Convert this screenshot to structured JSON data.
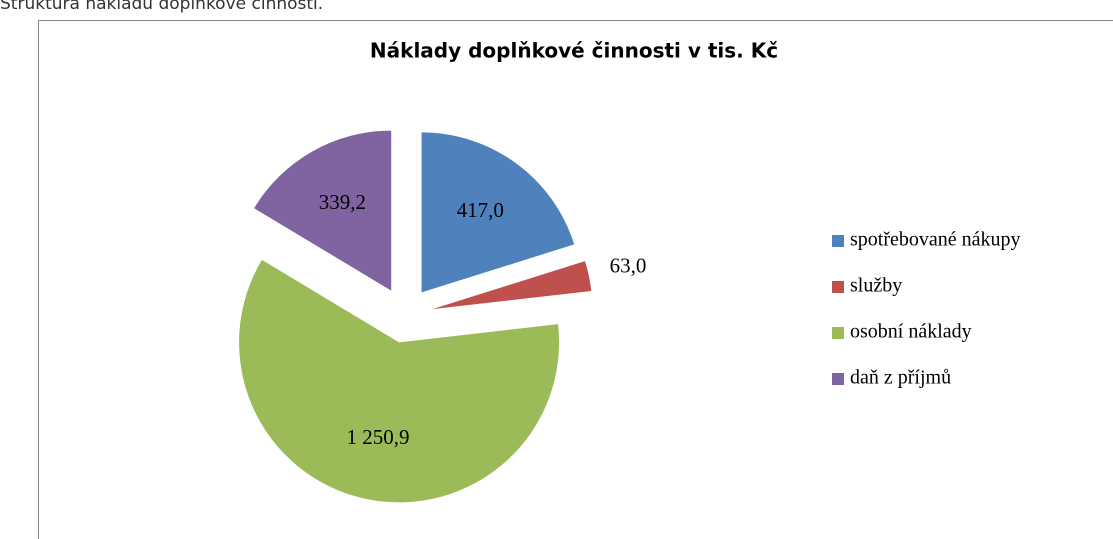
{
  "caption": "Struktura nákladů doplňkové činnosti.",
  "chart_data": {
    "type": "pie",
    "title": "Náklady doplňkové činnosti v tis. Kč",
    "categories": [
      "spotřebované nákupy",
      "služby",
      "osobní náklady",
      "daň z příjmů"
    ],
    "values": [
      417.0,
      63.0,
      1250.9,
      339.2
    ],
    "value_labels": [
      "417,0",
      "63,0",
      "1 250,9",
      "339,2"
    ],
    "colors": [
      "#4f81bd",
      "#c0504d",
      "#9bbb59",
      "#8064a2"
    ],
    "legend": "right"
  }
}
